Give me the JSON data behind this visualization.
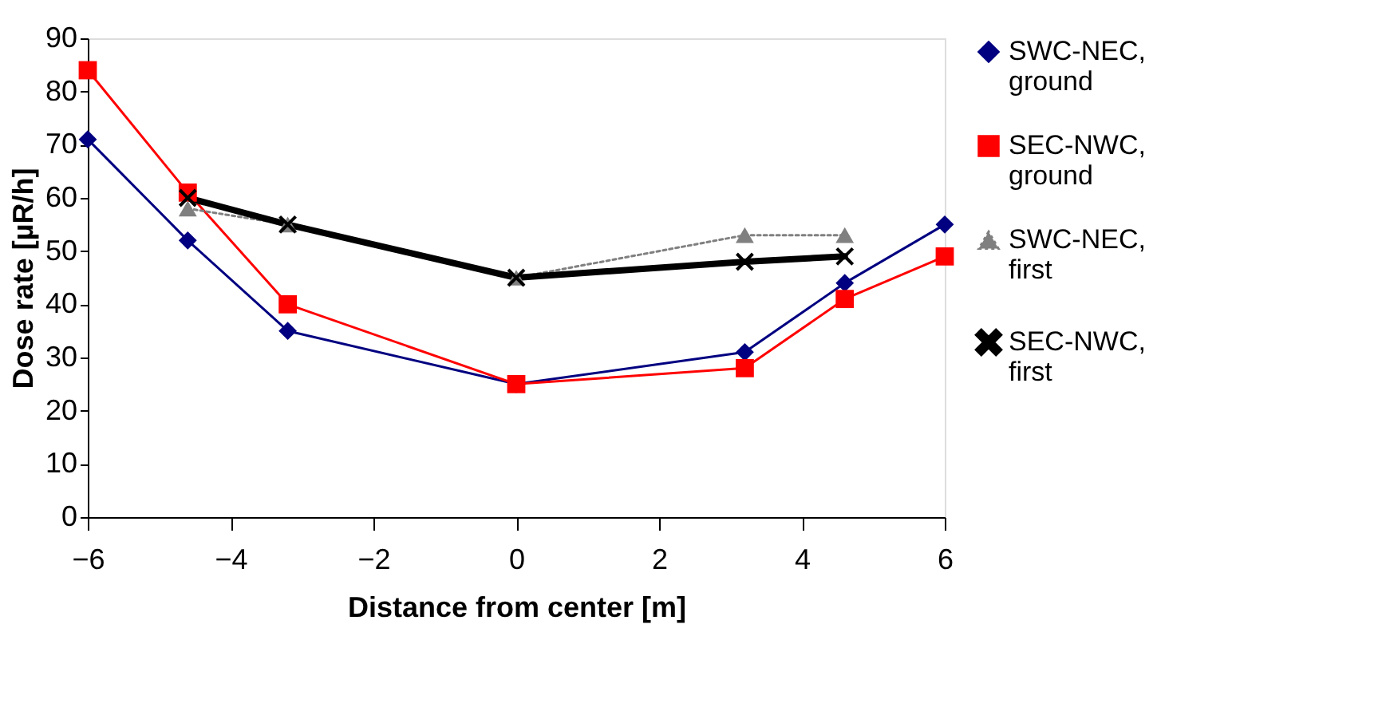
{
  "chart_data": {
    "type": "line",
    "xlabel": "Distance from center [m]",
    "ylabel": "Dose rate [µR/h]",
    "x": [
      -6,
      -4.6,
      -3.2,
      0,
      3.2,
      4.6,
      6
    ],
    "xlim": [
      -6,
      6
    ],
    "xticks": [
      -6,
      -4,
      -2,
      0,
      2,
      4,
      6
    ],
    "ylim": [
      0,
      90
    ],
    "yticks": [
      0,
      10,
      20,
      30,
      40,
      50,
      60,
      70,
      80,
      90
    ],
    "grid": false,
    "legend": "right",
    "series": [
      {
        "name": "SWC-NEC, ground",
        "color": "#000080",
        "marker": "diamond",
        "line_style": "solid",
        "values": [
          71,
          52,
          35,
          25,
          31,
          44,
          55
        ]
      },
      {
        "name": "SEC-NWC, ground",
        "color": "#ff0000",
        "marker": "square",
        "line_style": "solid",
        "values": [
          84,
          61,
          40,
          25,
          28,
          41,
          49
        ]
      },
      {
        "name": "SWC-NEC, first",
        "color": "#808080",
        "marker": "triangle",
        "line_style": "dotted",
        "values": [
          null,
          58,
          55,
          45,
          53,
          53,
          null
        ]
      },
      {
        "name": "SEC-NWC, first",
        "color": "#000000",
        "marker": "cross",
        "line_style": "solid",
        "values": [
          null,
          60,
          55,
          45,
          48,
          49,
          null
        ]
      }
    ]
  }
}
